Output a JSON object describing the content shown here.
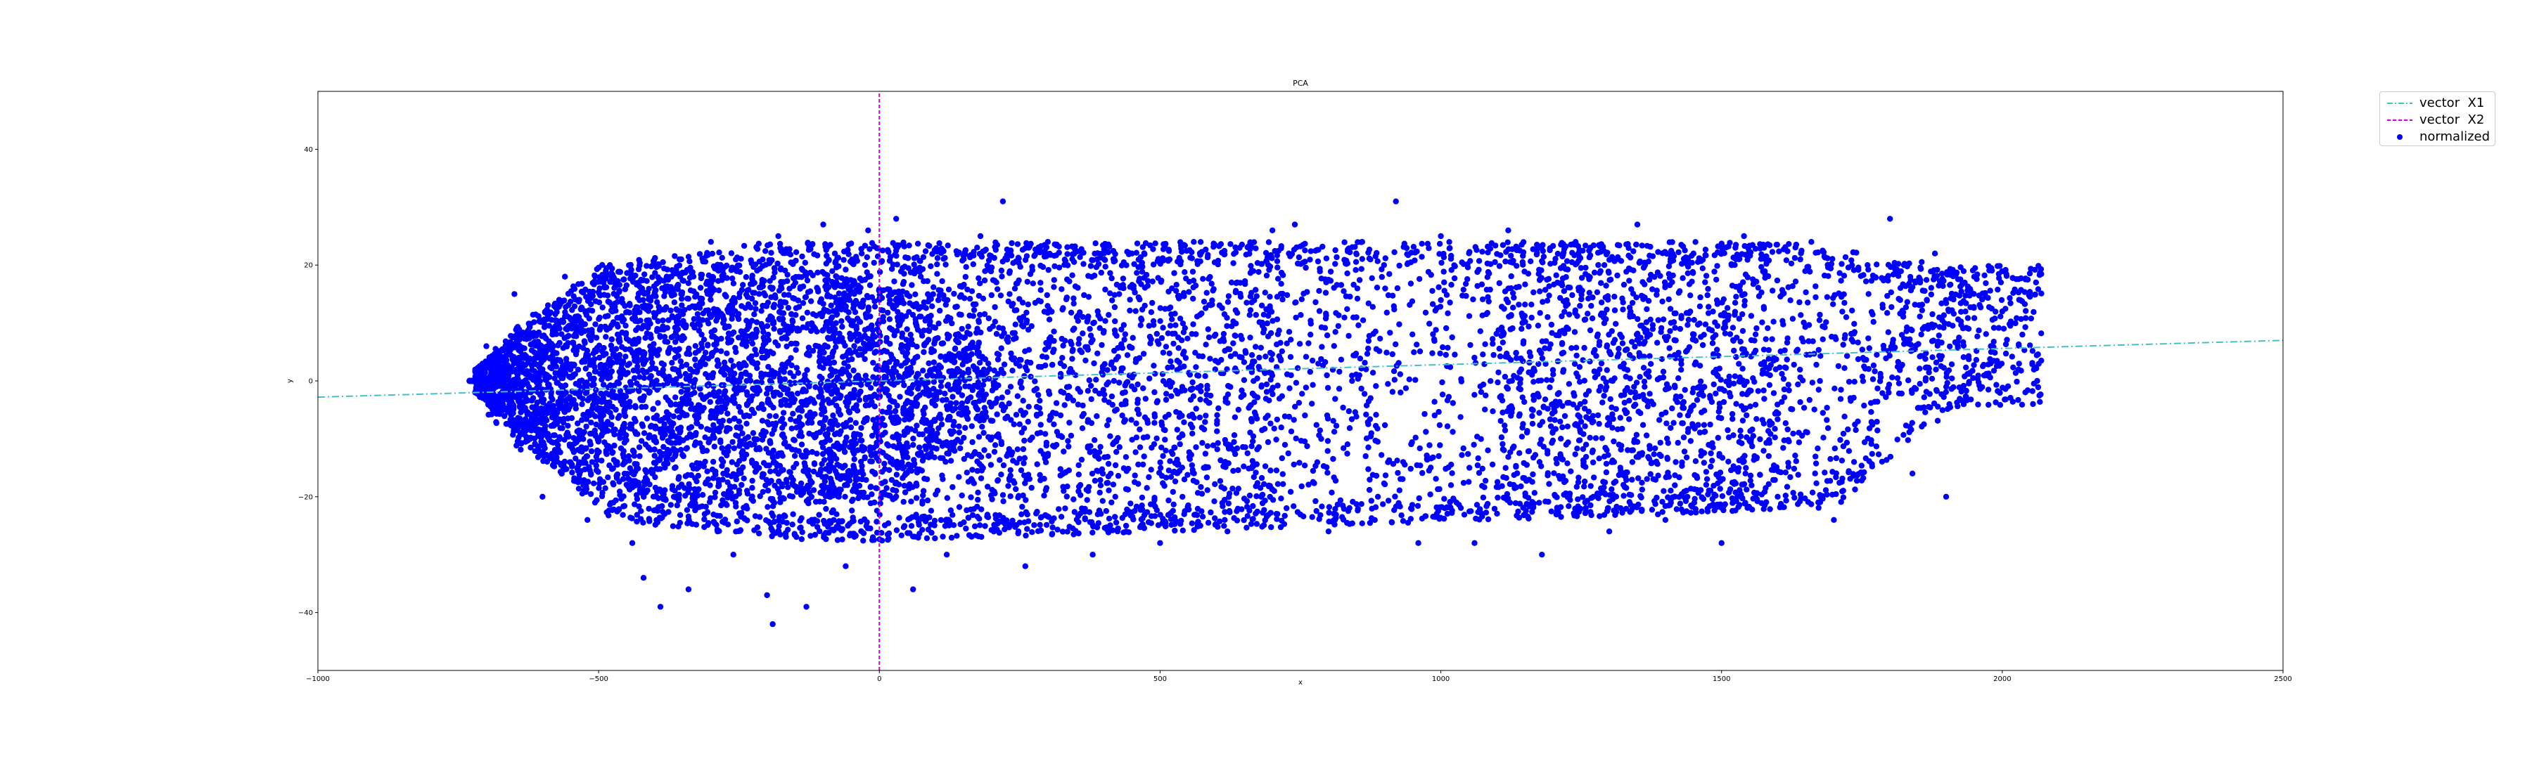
{
  "chart_data": {
    "type": "scatter",
    "title": "PCA",
    "xlabel": "x",
    "ylabel": "y",
    "xlim": [
      -1000,
      2500
    ],
    "ylim": [
      -50,
      50
    ],
    "xticks": [
      -1000,
      -500,
      0,
      500,
      1000,
      1500,
      2000,
      2500
    ],
    "yticks": [
      -40,
      -20,
      0,
      20,
      40
    ],
    "xtick_labels": [
      "−1000",
      "−500",
      "0",
      "500",
      "1000",
      "1500",
      "2000",
      "2500"
    ],
    "ytick_labels": [
      "−40",
      "−20",
      "0",
      "20",
      "40"
    ],
    "grid": false,
    "legend_position": "upper-right-outside",
    "series": [
      {
        "name": "vector  X1",
        "kind": "line",
        "style": "dashdot",
        "color": "#40c0c8",
        "x": [
          -1000,
          2500
        ],
        "y": [
          -2.8,
          7.0
        ]
      },
      {
        "name": "vector  X2",
        "kind": "line",
        "style": "dashed",
        "color": "#d000d0",
        "x": [
          0,
          0
        ],
        "y": [
          -50,
          50
        ]
      },
      {
        "name": "normalized",
        "kind": "scatter",
        "color": "#0000ff",
        "cloud": {
          "x_range": [
            -730,
            2070
          ],
          "y_range": [
            -42,
            32
          ],
          "dense_core": {
            "x": [
              -700,
              100
            ],
            "y": [
              -28,
              24
            ]
          }
        },
        "points": [
          [
            -720,
            -2
          ],
          [
            -700,
            6
          ],
          [
            -650,
            15
          ],
          [
            -600,
            -20
          ],
          [
            -560,
            18
          ],
          [
            -520,
            -24
          ],
          [
            -480,
            20
          ],
          [
            -440,
            -28
          ],
          [
            -420,
            -34
          ],
          [
            -390,
            -39
          ],
          [
            -340,
            -36
          ],
          [
            -300,
            24
          ],
          [
            -260,
            -30
          ],
          [
            -200,
            -37
          ],
          [
            -190,
            -42
          ],
          [
            -180,
            25
          ],
          [
            -130,
            -39
          ],
          [
            -100,
            27
          ],
          [
            -60,
            -32
          ],
          [
            -20,
            26
          ],
          [
            30,
            28
          ],
          [
            60,
            -36
          ],
          [
            120,
            -30
          ],
          [
            180,
            25
          ],
          [
            220,
            31
          ],
          [
            260,
            -32
          ],
          [
            300,
            24
          ],
          [
            380,
            -30
          ],
          [
            450,
            22
          ],
          [
            500,
            -28
          ],
          [
            560,
            24
          ],
          [
            620,
            -26
          ],
          [
            700,
            26
          ],
          [
            740,
            27
          ],
          [
            800,
            -26
          ],
          [
            860,
            24
          ],
          [
            920,
            31
          ],
          [
            960,
            -28
          ],
          [
            1000,
            25
          ],
          [
            1060,
            -28
          ],
          [
            1120,
            26
          ],
          [
            1180,
            -30
          ],
          [
            1240,
            24
          ],
          [
            1300,
            -26
          ],
          [
            1350,
            27
          ],
          [
            1400,
            -24
          ],
          [
            1450,
            22
          ],
          [
            1500,
            -28
          ],
          [
            1540,
            25
          ],
          [
            1600,
            -20
          ],
          [
            1660,
            24
          ],
          [
            1700,
            -24
          ],
          [
            1760,
            20
          ],
          [
            1800,
            28
          ],
          [
            1840,
            -16
          ],
          [
            1880,
            22
          ],
          [
            1900,
            -20
          ],
          [
            1950,
            18
          ],
          [
            2000,
            12
          ],
          [
            2030,
            14
          ],
          [
            2060,
            17
          ],
          [
            1980,
            5
          ],
          [
            1940,
            9
          ]
        ]
      }
    ]
  }
}
